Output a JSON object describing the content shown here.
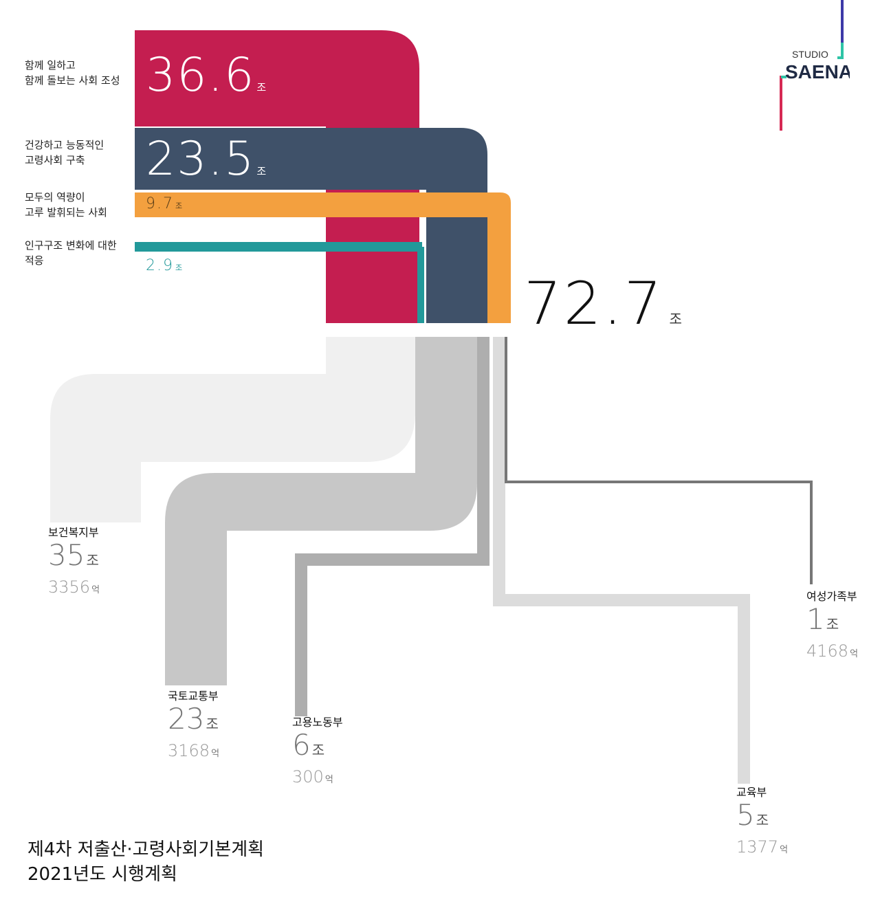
{
  "chart_data": {
    "type": "sankey",
    "total": {
      "value": "72.7",
      "unit": "조"
    },
    "sources": [
      {
        "label_line1": "함께 일하고",
        "label_line2": "함께 돌보는 사회 조성",
        "value": "36.6",
        "unit": "조",
        "color": "#c41e50"
      },
      {
        "label_line1": "건강하고 능동적인",
        "label_line2": "고령사회 구축",
        "value": "23.5",
        "unit": "조",
        "color": "#3f5169"
      },
      {
        "label_line1": "모두의 역량이",
        "label_line2": "고루 발휘되는 사회",
        "value": "9.7",
        "unit": "조",
        "color": "#f3a03f"
      },
      {
        "label_line1": "인구구조 변화에 대한",
        "label_line2": "적응",
        "value": "2.9",
        "unit": "조",
        "color": "#22999a"
      }
    ],
    "targets": [
      {
        "name": "보건복지부",
        "jo": "35",
        "eok": "3356",
        "color": "#f0f0f0"
      },
      {
        "name": "국토교통부",
        "jo": "23",
        "eok": "3168",
        "color": "#c7c7c7"
      },
      {
        "name": "고용노동부",
        "jo": "6",
        "eok": "300",
        "color": "#aeaeae"
      },
      {
        "name": "교육부",
        "jo": "5",
        "eok": "1377",
        "color": "#dcdcdc"
      },
      {
        "name": "여성가족부",
        "jo": "1",
        "eok": "4168",
        "color": "#777777"
      }
    ],
    "units": {
      "jo": "조",
      "eok": "억"
    }
  },
  "logo": {
    "top_text": "STUDIO",
    "main_text": "SAENA"
  },
  "title": {
    "line1": "제4차 저출산·고령사회기본계획",
    "line2": "2021년도 시행계획"
  }
}
